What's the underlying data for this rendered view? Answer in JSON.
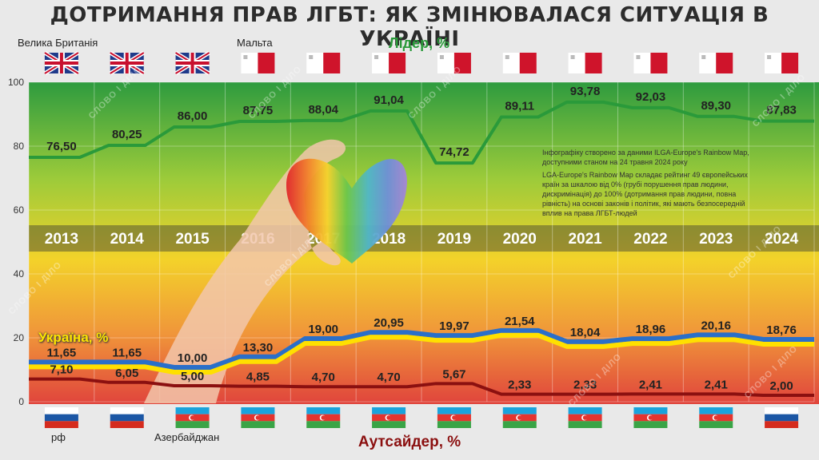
{
  "title": "ДОТРИМАННЯ ПРАВ ЛГБТ: ЯК ЗМІНЮВАЛАСЯ СИТУАЦІЯ В УКРАЇНІ",
  "leader_title": "Лідер, %",
  "outsider_title": "Аутсайдер, %",
  "ukraine_title": "Україна, %",
  "country_labels": {
    "uk": "Велика Британія",
    "malta": "Мальта",
    "rf": "рф",
    "azerbaijan": "Азербайджан"
  },
  "note": {
    "line1": "Інфографіку створено за даними ILGA-Europe's Rainbow Map, доступними станом на 24 травня 2024 року",
    "line2": "LGA-Europe's Rainbow Map складає рейтинг 49 європейських країн за шкалою від 0% (грубі порушення прав людини, дискримінація) до 100% (дотримання прав людини, повна рівність) на основі законів і політик, які мають безпосередній вплив на права ЛГБТ-людей"
  },
  "watermark": "СЛОВО І ДІЛО",
  "colors": {
    "leader": "#2a9a3a",
    "outsider": "#8b1010",
    "ukraine_blue": "#2a6fc9",
    "ukraine_yellow": "#ffe000"
  },
  "flags_top": [
    "uk",
    "uk",
    "uk",
    "malta",
    "malta",
    "malta",
    "malta",
    "malta",
    "malta",
    "malta",
    "malta",
    "malta"
  ],
  "flags_bottom": [
    "russia",
    "russia",
    "azerbaijan",
    "azerbaijan",
    "azerbaijan",
    "azerbaijan",
    "azerbaijan",
    "azerbaijan",
    "azerbaijan",
    "azerbaijan",
    "azerbaijan",
    "russia"
  ],
  "chart_data": {
    "type": "line",
    "categories": [
      "2013",
      "2014",
      "2015",
      "2016",
      "2017",
      "2018",
      "2019",
      "2020",
      "2021",
      "2022",
      "2023",
      "2024"
    ],
    "series": [
      {
        "name": "Лідер, %",
        "values": [
          76.5,
          80.25,
          86.0,
          87.75,
          88.04,
          91.04,
          74.72,
          89.11,
          93.78,
          92.03,
          89.3,
          87.83
        ]
      },
      {
        "name": "Україна, %",
        "values": [
          11.65,
          11.65,
          10.0,
          13.3,
          19.0,
          20.95,
          19.97,
          21.54,
          18.04,
          18.96,
          20.16,
          18.76
        ]
      },
      {
        "name": "Аутсайдер, %",
        "values": [
          7.1,
          6.05,
          5.0,
          4.85,
          4.7,
          4.7,
          5.67,
          2.33,
          2.33,
          2.41,
          2.41,
          2.0
        ]
      }
    ],
    "value_labels": {
      "leader": [
        "76,50",
        "80,25",
        "86,00",
        "87,75",
        "88,04",
        "91,04",
        "74,72",
        "89,11",
        "93,78",
        "92,03",
        "89,30",
        "87,83"
      ],
      "ukraine": [
        "11,65",
        "11,65",
        "10,00",
        "13,30",
        "19,00",
        "20,95",
        "19,97",
        "21,54",
        "18,04",
        "18,96",
        "20,16",
        "18,76"
      ],
      "outsider": [
        "7,10",
        "6,05",
        "5,00",
        "4,85",
        "4,70",
        "4,70",
        "5,67",
        "2,33",
        "2,33",
        "2,41",
        "2,41",
        "2,00"
      ]
    },
    "yticks": [
      "0",
      "20",
      "40",
      "60",
      "80",
      "100"
    ],
    "ylim": [
      0,
      100
    ],
    "grid": true
  }
}
